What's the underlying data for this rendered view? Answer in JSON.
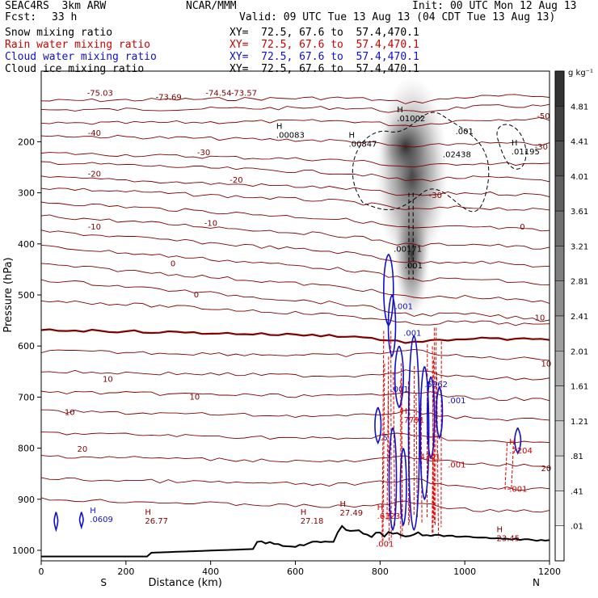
{
  "header": {
    "title": "SEAC4RS  3km ARW",
    "center": "NCAR/MMM",
    "init": "Init: 00 UTC Mon 12 Aug 13",
    "fcst_label": "Fcst:",
    "fcst_value": "33 h",
    "valid": "Valid: 09 UTC Tue 13 Aug 13 (04 CDT Tue 13 Aug 13)"
  },
  "fields": [
    {
      "name": "Snow mixing ratio",
      "xy": "XY=  72.5, 67.6 to  57.4,470.1",
      "color": "#000000"
    },
    {
      "name": "Rain water mixing ratio",
      "xy": "XY=  72.5, 67.6 to  57.4,470.1",
      "color": "#d00000"
    },
    {
      "name": "Cloud water mixing ratio",
      "xy": "XY=  72.5, 67.6 to  57.4,470.1",
      "color": "#1010c8"
    },
    {
      "name": "Cloud ice mixing ratio",
      "xy": "XY=  72.5, 67.6 to  57.4,470.1",
      "color": "#000000"
    }
  ],
  "chart_data": {
    "type": "heatmap",
    "xlabel": "Distance (km)",
    "ylabel": "Pressure (hPa)",
    "xlim": [
      0,
      1200
    ],
    "ylim": [
      100,
      1020
    ],
    "x_ticks": [
      0,
      200,
      400,
      600,
      800,
      1000,
      1200
    ],
    "y_ticks": [
      200,
      300,
      400,
      500,
      600,
      700,
      800,
      900,
      1000
    ],
    "x_end_labels": {
      "left": "S",
      "right": "N"
    },
    "colorbar": {
      "unit": "g kg⁻¹",
      "labels": [
        "4.81",
        "4.41",
        "4.01",
        "3.61",
        "3.21",
        "2.81",
        "2.41",
        "2.01",
        "1.61",
        "1.21",
        ".81",
        ".41",
        ".01"
      ],
      "values": [
        4.81,
        4.41,
        4.01,
        3.61,
        3.21,
        2.81,
        2.41,
        2.01,
        1.61,
        1.21,
        0.81,
        0.41,
        0.01
      ]
    },
    "temperature_contours": [
      {
        "value": -70,
        "p_left": 120,
        "p_right": 110
      },
      {
        "value": -60,
        "p_left": 138,
        "p_right": 130
      },
      {
        "value": -50,
        "p_left": 165,
        "p_right": 155
      },
      {
        "value": -40,
        "p_left": 188,
        "p_right": 205
      },
      {
        "value": -30,
        "p_left": 222,
        "p_right": 245
      },
      {
        "value": -30,
        "p_left": 240,
        "p_right": 275
      },
      {
        "value": -20,
        "p_left": 270,
        "p_right": 305
      },
      {
        "value": -20,
        "p_left": 290,
        "p_right": 335
      },
      {
        "value": -10,
        "p_left": 318,
        "p_right": 375
      },
      {
        "value": -10,
        "p_left": 345,
        "p_right": 410
      },
      {
        "value": -10,
        "p_left": 375,
        "p_right": 445
      },
      {
        "value": 0,
        "p_left": 405,
        "p_right": 480
      },
      {
        "value": 0,
        "p_left": 440,
        "p_right": 515
      },
      {
        "value": 0,
        "p_left": 470,
        "p_right": 550
      },
      {
        "value": 0,
        "p_left": 510,
        "p_right": 560
      },
      {
        "value": 0,
        "p_left": 568,
        "p_right": 588,
        "bold": true
      },
      {
        "value": 10,
        "p_left": 610,
        "p_right": 625
      },
      {
        "value": 10,
        "p_left": 650,
        "p_right": 665
      },
      {
        "value": 10,
        "p_left": 690,
        "p_right": 705
      },
      {
        "value": 10,
        "p_left": 728,
        "p_right": 745
      },
      {
        "value": 20,
        "p_left": 770,
        "p_right": 790
      },
      {
        "value": 20,
        "p_left": 815,
        "p_right": 835
      },
      {
        "value": 20,
        "p_left": 860,
        "p_right": 880
      },
      {
        "value": 20,
        "p_left": 900,
        "p_right": 925
      }
    ],
    "contour_labels": [
      {
        "text": "-75.03",
        "x": 108,
        "p": 110
      },
      {
        "text": "-73.69",
        "x": 270,
        "p": 118
      },
      {
        "text": "-74.54",
        "x": 388,
        "p": 110
      },
      {
        "text": "-73.57",
        "x": 448,
        "p": 110
      },
      {
        "text": "-40",
        "x": 110,
        "p": 188
      },
      {
        "text": "-30",
        "x": 368,
        "p": 226
      },
      {
        "text": "-20",
        "x": 110,
        "p": 268
      },
      {
        "text": "-20",
        "x": 445,
        "p": 280
      },
      {
        "text": "-10",
        "x": 385,
        "p": 365
      },
      {
        "text": "-10",
        "x": 110,
        "p": 372
      },
      {
        "text": "0",
        "x": 305,
        "p": 444
      },
      {
        "text": "0",
        "x": 360,
        "p": 505
      },
      {
        "text": "10",
        "x": 145,
        "p": 670
      },
      {
        "text": "10",
        "x": 350,
        "p": 705
      },
      {
        "text": "10",
        "x": 55,
        "p": 735
      },
      {
        "text": "20",
        "x": 85,
        "p": 807
      },
      {
        "text": "-50",
        "x": 1170,
        "p": 155
      },
      {
        "text": "-30",
        "x": 1165,
        "p": 215
      },
      {
        "text": "-30",
        "x": 915,
        "p": 310
      },
      {
        "text": "0",
        "x": 1130,
        "p": 372
      },
      {
        "text": "10",
        "x": 1165,
        "p": 550
      },
      {
        "text": "10",
        "x": 1180,
        "p": 640
      },
      {
        "text": "20",
        "x": 1180,
        "p": 845
      }
    ],
    "max_labels": [
      {
        "h": "H",
        "value": ".00083",
        "x": 555,
        "p": 192,
        "color": "#000000"
      },
      {
        "h": "H",
        "value": ".00847",
        "x": 726,
        "p": 210,
        "color": "#000000"
      },
      {
        "h": "H",
        "value": ".01002",
        "x": 840,
        "p": 160,
        "color": "#000000"
      },
      {
        "h": "",
        "value": ".001",
        "x": 978,
        "p": 185,
        "color": "#000000"
      },
      {
        "h": "",
        "value": ".02438",
        "x": 948,
        "p": 230,
        "color": "#000000"
      },
      {
        "h": "H",
        "value": ".01195",
        "x": 1110,
        "p": 225,
        "color": "#000000"
      },
      {
        "h": "",
        "value": ".00171",
        "x": 832,
        "p": 415,
        "color": "#000000"
      },
      {
        "h": "",
        "value": ".001",
        "x": 858,
        "p": 448,
        "color": "#000000"
      },
      {
        "h": "",
        "value": ".001",
        "x": 835,
        "p": 528,
        "color": "#1010c8"
      },
      {
        "h": "",
        "value": ".001",
        "x": 855,
        "p": 580,
        "color": "#1010c8"
      },
      {
        "h": "",
        "value": ".5962",
        "x": 905,
        "p": 680,
        "color": "#1010c8"
      },
      {
        "h": "",
        "value": ".001",
        "x": 960,
        "p": 712,
        "color": "#1010c8"
      },
      {
        "h": "",
        "value": ".001",
        "x": 825,
        "p": 690,
        "color": "#1010c8"
      },
      {
        "h": "H",
        "value": ".7791",
        "x": 850,
        "p": 750,
        "color": "#d00000"
      },
      {
        "h": "",
        "value": ".5",
        "x": 800,
        "p": 785,
        "color": "#1010c8"
      },
      {
        "h": "",
        "value": ".4301",
        "x": 888,
        "p": 822,
        "color": "#d00000"
      },
      {
        "h": "",
        "value": ".001",
        "x": 960,
        "p": 838,
        "color": "#d00000"
      },
      {
        "h": "H",
        "value": ".6323",
        "x": 793,
        "p": 938,
        "color": "#d00000"
      },
      {
        "h": "",
        "value": ".001",
        "x": 790,
        "p": 993,
        "color": "#d00000"
      },
      {
        "h": "H",
        "value": ".7204",
        "x": 1105,
        "p": 810,
        "color": "#d00000"
      },
      {
        "h": "",
        "value": ".001",
        "x": 1105,
        "p": 885,
        "color": "#d00000"
      },
      {
        "h": "H",
        "value": ".0609",
        "x": 115,
        "p": 945,
        "color": "#1010c8"
      },
      {
        "h": "H",
        "value": "26.77",
        "x": 245,
        "p": 948,
        "color": "#800000"
      },
      {
        "h": "H",
        "value": "27.18",
        "x": 612,
        "p": 948,
        "color": "#800000"
      },
      {
        "h": "H",
        "value": "27.49",
        "x": 705,
        "p": 932,
        "color": "#800000"
      },
      {
        "h": "H",
        "value": "23.45",
        "x": 1075,
        "p": 982,
        "color": "#800000"
      }
    ]
  }
}
